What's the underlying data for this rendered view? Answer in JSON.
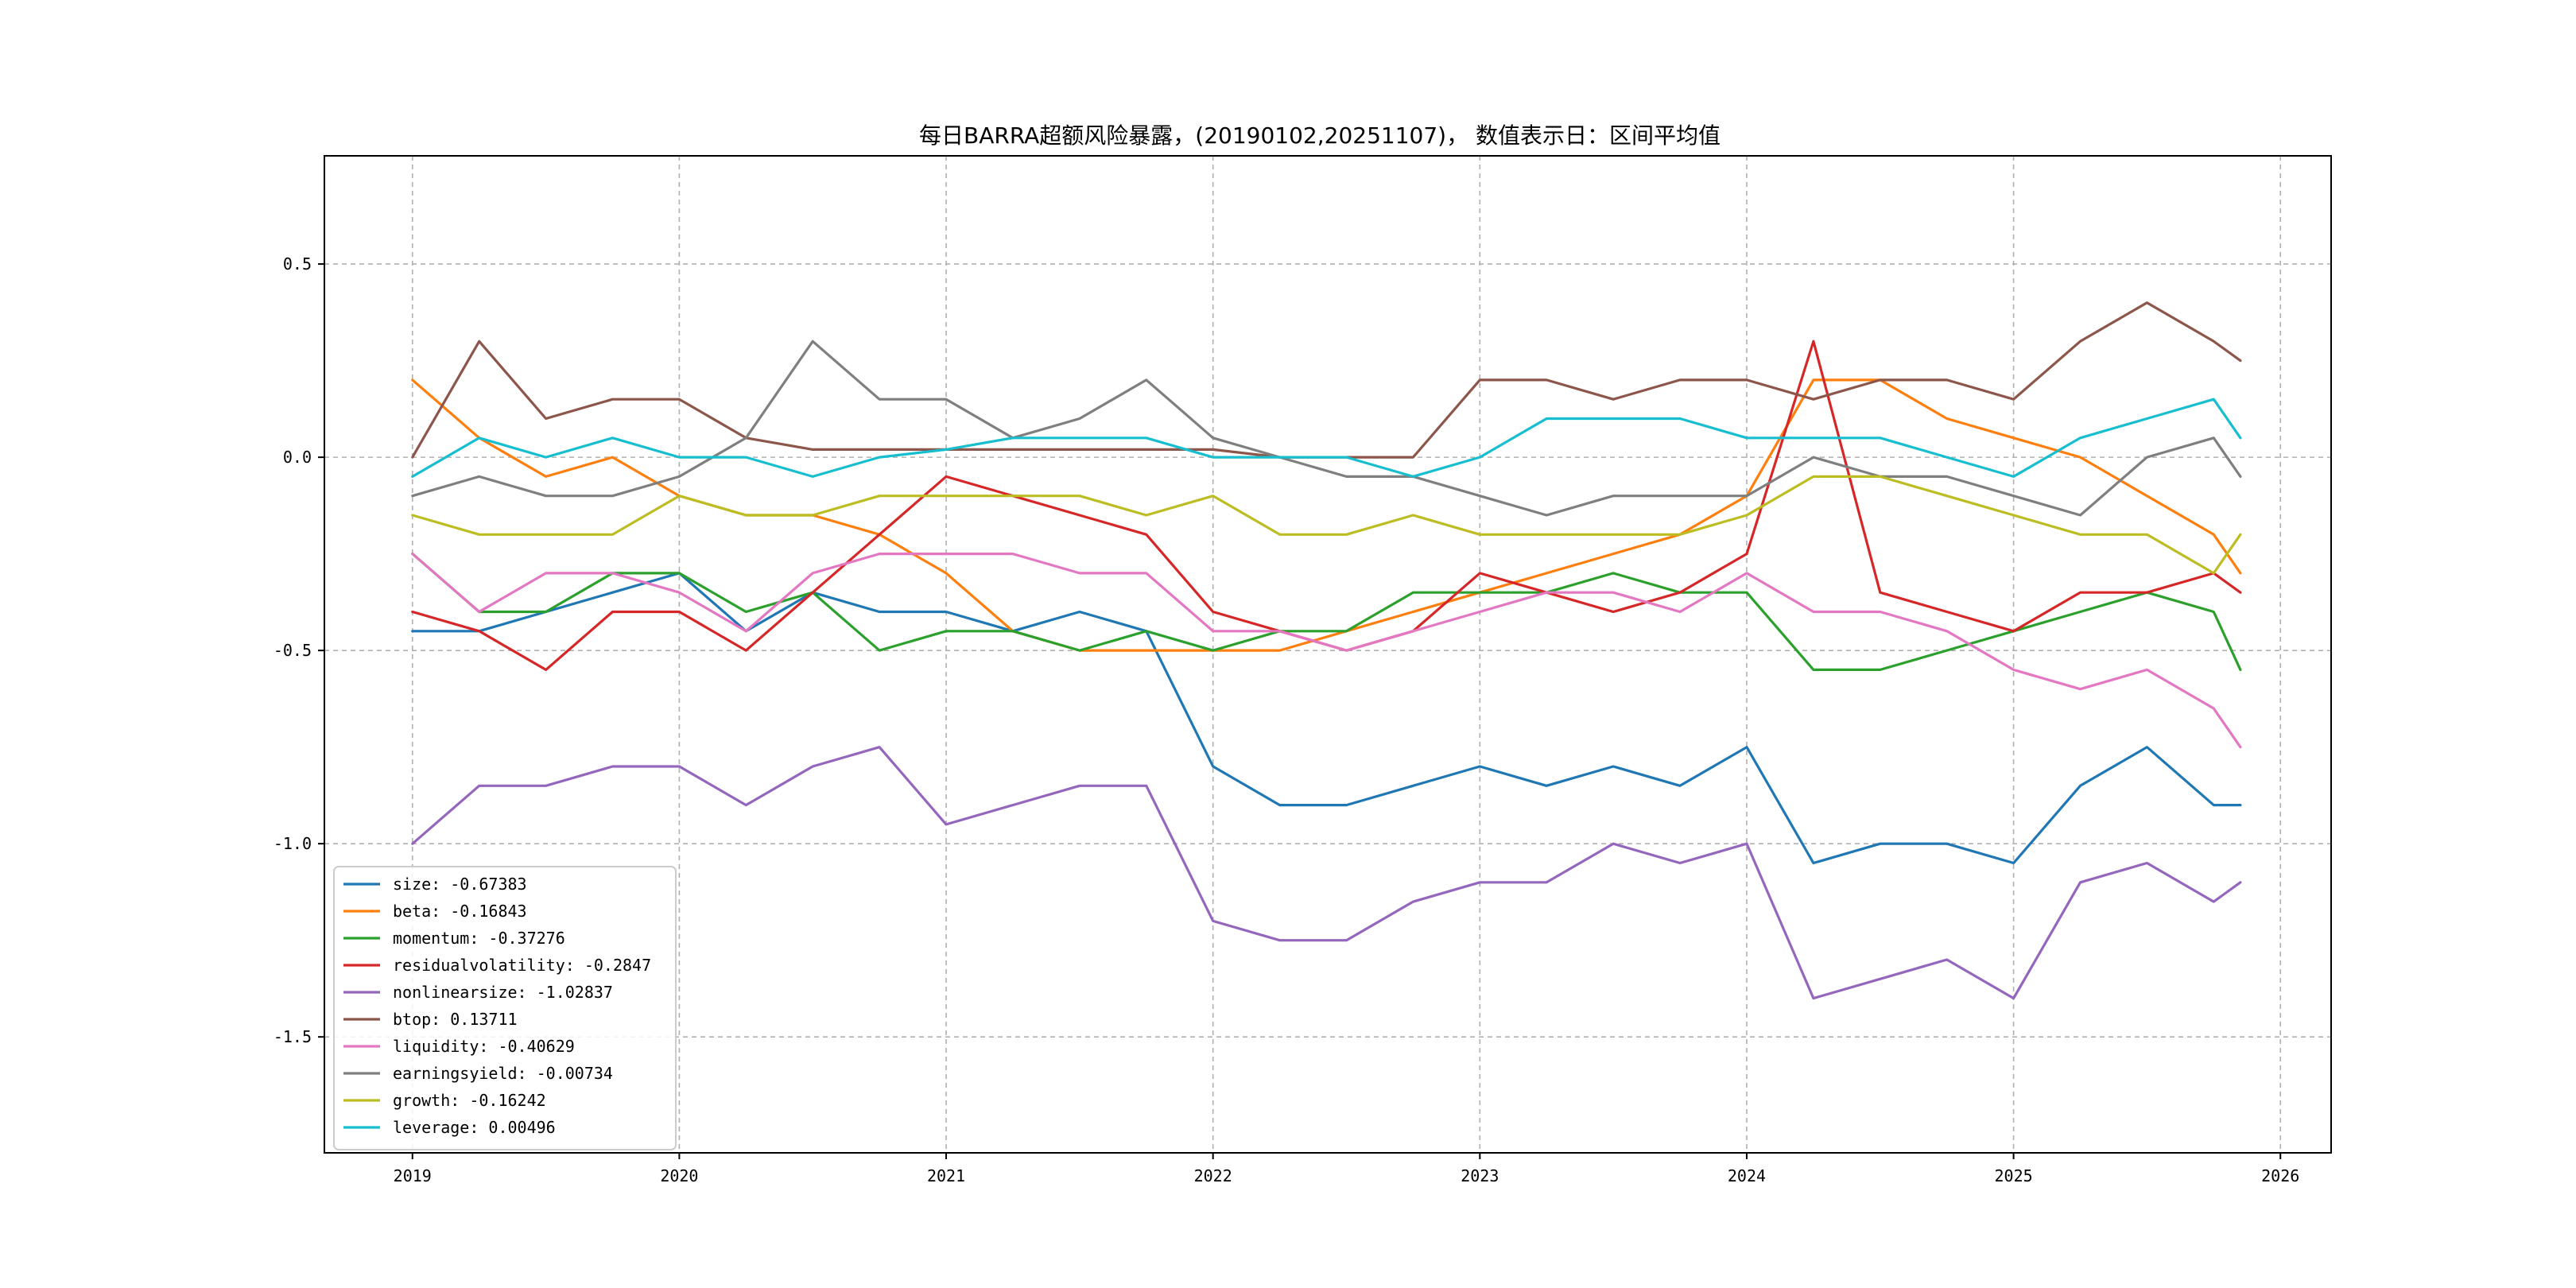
{
  "chart_data": {
    "type": "line",
    "title": "每日BARRA超额风险暴露，(20190102,20251107)， 数值表示日：区间平均值",
    "xlabel": "",
    "ylabel": "",
    "x_range": [
      2018.67,
      2026.19
    ],
    "ylim": [
      -1.8,
      0.78
    ],
    "x_ticks": [
      2019,
      2020,
      2021,
      2022,
      2023,
      2024,
      2025,
      2026
    ],
    "x_tick_labels": [
      "2019",
      "2020",
      "2021",
      "2022",
      "2023",
      "2024",
      "2025",
      "2026"
    ],
    "y_ticks": [
      -1.5,
      -1.0,
      -0.5,
      0.0,
      0.5
    ],
    "y_tick_labels": [
      "-1.5",
      "-1.0",
      "-0.5",
      "0.0",
      "0.5"
    ],
    "grid": true,
    "legend_position": "lower-left",
    "legend": [
      "size: -0.67383",
      "beta: -0.16843",
      "momentum: -0.37276",
      "residualvolatility: -0.2847",
      "nonlinearsize: -1.02837",
      "btop: 0.13711",
      "liquidity: -0.40629",
      "earningsyield: -0.00734",
      "growth: -0.16242",
      "leverage: 0.00496"
    ],
    "x": [
      2019.0,
      2019.25,
      2019.5,
      2019.75,
      2020.0,
      2020.25,
      2020.5,
      2020.75,
      2021.0,
      2021.25,
      2021.5,
      2021.75,
      2022.0,
      2022.25,
      2022.5,
      2022.75,
      2023.0,
      2023.25,
      2023.5,
      2023.75,
      2024.0,
      2024.25,
      2024.5,
      2024.75,
      2025.0,
      2025.25,
      2025.5,
      2025.75,
      2025.85
    ],
    "series": [
      {
        "color": "#1f77b4",
        "values": [
          -0.45,
          -0.45,
          -0.4,
          -0.35,
          -0.3,
          -0.45,
          -0.35,
          -0.4,
          -0.4,
          -0.45,
          -0.4,
          -0.45,
          -0.8,
          -0.9,
          -0.9,
          -0.85,
          -0.8,
          -0.85,
          -0.8,
          -0.85,
          -0.75,
          -1.05,
          -1.0,
          -1.0,
          -1.05,
          -0.85,
          -0.75,
          -0.9,
          -0.9
        ]
      },
      {
        "color": "#ff7f0e",
        "values": [
          0.2,
          0.05,
          -0.05,
          0.0,
          -0.1,
          -0.15,
          -0.15,
          -0.2,
          -0.3,
          -0.45,
          -0.5,
          -0.5,
          -0.5,
          -0.5,
          -0.45,
          -0.4,
          -0.35,
          -0.3,
          -0.25,
          -0.2,
          -0.1,
          0.2,
          0.2,
          0.1,
          0.05,
          0.0,
          -0.1,
          -0.2,
          -0.3
        ]
      },
      {
        "color": "#2ca02c",
        "values": [
          -0.25,
          -0.4,
          -0.4,
          -0.3,
          -0.3,
          -0.4,
          -0.35,
          -0.5,
          -0.45,
          -0.45,
          -0.5,
          -0.45,
          -0.5,
          -0.45,
          -0.45,
          -0.35,
          -0.35,
          -0.35,
          -0.3,
          -0.35,
          -0.35,
          -0.55,
          -0.55,
          -0.5,
          -0.45,
          -0.4,
          -0.35,
          -0.4,
          -0.55
        ]
      },
      {
        "color": "#d62728",
        "values": [
          -0.4,
          -0.45,
          -0.55,
          -0.4,
          -0.4,
          -0.5,
          -0.35,
          -0.2,
          -0.05,
          -0.1,
          -0.15,
          -0.2,
          -0.4,
          -0.45,
          -0.5,
          -0.45,
          -0.3,
          -0.35,
          -0.4,
          -0.35,
          -0.25,
          0.3,
          -0.35,
          -0.4,
          -0.45,
          -0.35,
          -0.35,
          -0.3,
          -0.35
        ]
      },
      {
        "color": "#9467bd",
        "values": [
          -1.0,
          -0.85,
          -0.85,
          -0.8,
          -0.8,
          -0.9,
          -0.8,
          -0.75,
          -0.95,
          -0.9,
          -0.85,
          -0.85,
          -1.2,
          -1.25,
          -1.25,
          -1.15,
          -1.1,
          -1.1,
          -1.0,
          -1.05,
          -1.0,
          -1.4,
          -1.35,
          -1.3,
          -1.4,
          -1.1,
          -1.05,
          -1.15,
          -1.1
        ]
      },
      {
        "color": "#8c564b",
        "values": [
          0.0,
          0.3,
          0.1,
          0.15,
          0.15,
          0.05,
          0.02,
          0.02,
          0.02,
          0.02,
          0.02,
          0.02,
          0.02,
          0.0,
          0.0,
          0.0,
          0.2,
          0.2,
          0.15,
          0.2,
          0.2,
          0.15,
          0.2,
          0.2,
          0.15,
          0.3,
          0.4,
          0.3,
          0.25
        ]
      },
      {
        "color": "#e377c2",
        "values": [
          -0.25,
          -0.4,
          -0.3,
          -0.3,
          -0.35,
          -0.45,
          -0.3,
          -0.25,
          -0.25,
          -0.25,
          -0.3,
          -0.3,
          -0.45,
          -0.45,
          -0.5,
          -0.45,
          -0.4,
          -0.35,
          -0.35,
          -0.4,
          -0.3,
          -0.4,
          -0.4,
          -0.45,
          -0.55,
          -0.6,
          -0.55,
          -0.65,
          -0.75
        ]
      },
      {
        "color": "#7f7f7f",
        "values": [
          -0.1,
          -0.05,
          -0.1,
          -0.1,
          -0.05,
          0.05,
          0.3,
          0.15,
          0.15,
          0.05,
          0.1,
          0.2,
          0.05,
          0.0,
          -0.05,
          -0.05,
          -0.1,
          -0.15,
          -0.1,
          -0.1,
          -0.1,
          0.0,
          -0.05,
          -0.05,
          -0.1,
          -0.15,
          0.0,
          0.05,
          -0.05
        ]
      },
      {
        "color": "#bcbd22",
        "values": [
          -0.15,
          -0.2,
          -0.2,
          -0.2,
          -0.1,
          -0.15,
          -0.15,
          -0.1,
          -0.1,
          -0.1,
          -0.1,
          -0.15,
          -0.1,
          -0.2,
          -0.2,
          -0.15,
          -0.2,
          -0.2,
          -0.2,
          -0.2,
          -0.15,
          -0.05,
          -0.05,
          -0.1,
          -0.15,
          -0.2,
          -0.2,
          -0.3,
          -0.2
        ]
      },
      {
        "color": "#17becf",
        "values": [
          -0.05,
          0.05,
          0.0,
          0.05,
          0.0,
          0.0,
          -0.05,
          0.0,
          0.02,
          0.05,
          0.05,
          0.05,
          0.0,
          0.0,
          0.0,
          -0.05,
          0.0,
          0.1,
          0.1,
          0.1,
          0.05,
          0.05,
          0.05,
          0.0,
          -0.05,
          0.05,
          0.1,
          0.15,
          0.05
        ]
      }
    ]
  }
}
